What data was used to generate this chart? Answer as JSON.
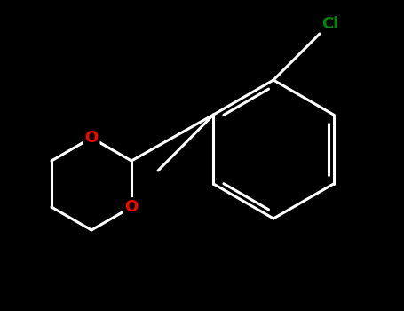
{
  "background_color": "#000000",
  "bond_color": "#ffffff",
  "bond_width": 2.2,
  "oxygen_color": "#ff0000",
  "chlorine_color": "#008800",
  "font_size_o": 13,
  "font_size_cl": 13,
  "figsize": [
    4.55,
    3.5
  ],
  "dpi": 100,
  "cl_label": "Cl",
  "o1_label": "O",
  "o2_label": "O"
}
